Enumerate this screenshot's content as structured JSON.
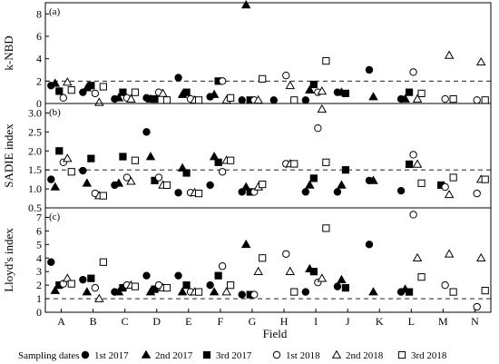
{
  "chart_data": [
    {
      "type": "scatter",
      "panel_tag": "(a)",
      "ylabel": "k-NBD",
      "ylim": [
        0,
        9
      ],
      "yticks": [
        0,
        2,
        4,
        6,
        8
      ],
      "reference_line": 2,
      "categories": [
        "A",
        "B",
        "C",
        "D",
        "E",
        "F",
        "G",
        "H",
        "I",
        "J",
        "K",
        "L",
        "M",
        "N"
      ],
      "series": [
        {
          "values": [
            1.6,
            1.0,
            0.4,
            0.5,
            2.3,
            0.6,
            0.3,
            0.3,
            0.3,
            1.0,
            3.0,
            0.4,
            null,
            null
          ]
        },
        {
          "values": [
            1.8,
            1.4,
            0.5,
            0.4,
            0.8,
            0.8,
            8.8,
            null,
            1.2,
            1.0,
            0.6,
            0.4,
            null,
            null
          ]
        },
        {
          "values": [
            1.1,
            1.6,
            1.0,
            0.4,
            1.0,
            2.0,
            0.3,
            null,
            1.7,
            0.9,
            null,
            1.0,
            null,
            null
          ]
        },
        {
          "values": [
            0.5,
            0.9,
            0.5,
            1.0,
            0.4,
            2.0,
            0.3,
            2.5,
            1.0,
            null,
            null,
            2.8,
            0.4,
            0.3
          ]
        },
        {
          "values": [
            1.9,
            0.1,
            0.4,
            0.9,
            0.3,
            0.3,
            0.3,
            1.6,
            1.1,
            null,
            null,
            0.4,
            4.3,
            3.7
          ]
        },
        {
          "values": [
            1.2,
            1.5,
            1.0,
            0.3,
            0.3,
            0.5,
            2.2,
            0.3,
            3.8,
            null,
            null,
            0.9,
            0.4,
            0.3
          ]
        }
      ]
    },
    {
      "type": "scatter",
      "panel_tag": "(b)",
      "ylabel": "SADIE index",
      "ylim": [
        0.5,
        3.25
      ],
      "yticks": [
        0.5,
        1.0,
        1.5,
        2.0,
        2.5,
        3.0
      ],
      "reference_line": 1.5,
      "categories": [
        "A",
        "B",
        "C",
        "D",
        "E",
        "F",
        "G",
        "H",
        "I",
        "J",
        "K",
        "L",
        "M",
        "N"
      ],
      "series": [
        {
          "values": [
            1.25,
            1.48,
            1.1,
            2.5,
            0.9,
            1.1,
            0.92,
            null,
            0.92,
            0.92,
            1.22,
            0.95,
            null,
            null
          ]
        },
        {
          "values": [
            1.05,
            1.15,
            1.15,
            1.85,
            1.55,
            1.85,
            1.05,
            null,
            1.1,
            1.1,
            1.22,
            null,
            null,
            null
          ]
        },
        {
          "values": [
            2.0,
            1.8,
            1.85,
            1.22,
            1.42,
            1.7,
            0.92,
            null,
            1.28,
            1.5,
            null,
            1.65,
            1.1,
            null
          ]
        },
        {
          "values": [
            1.7,
            0.88,
            1.3,
            1.3,
            0.9,
            1.45,
            0.92,
            1.66,
            2.6,
            null,
            null,
            1.9,
            1.05,
            0.88
          ]
        },
        {
          "values": [
            1.8,
            0.82,
            1.2,
            1.1,
            0.9,
            1.75,
            1.05,
            1.66,
            3.1,
            null,
            null,
            1.65,
            0.85,
            1.25
          ]
        },
        {
          "values": [
            1.45,
            0.82,
            1.75,
            1.1,
            0.88,
            1.75,
            1.12,
            1.66,
            1.7,
            null,
            null,
            1.15,
            1.3,
            1.25
          ]
        }
      ]
    },
    {
      "type": "scatter",
      "panel_tag": "(c)",
      "ylabel": "Lloyd's index",
      "xlabel": "Field",
      "ylim": [
        0,
        7.7
      ],
      "yticks": [
        0,
        1,
        2,
        3,
        4,
        5,
        6,
        7
      ],
      "reference_line": 1,
      "categories": [
        "A",
        "B",
        "C",
        "D",
        "E",
        "F",
        "G",
        "H",
        "I",
        "J",
        "K",
        "L",
        "M",
        "N"
      ],
      "series": [
        {
          "values": [
            3.7,
            2.4,
            1.5,
            2.7,
            2.7,
            2.0,
            1.3,
            null,
            1.5,
            1.9,
            5.0,
            1.5,
            null,
            null
          ]
        },
        {
          "values": [
            1.6,
            1.5,
            1.5,
            1.5,
            1.5,
            1.5,
            5.0,
            null,
            3.2,
            2.4,
            1.5,
            1.7,
            null,
            null
          ]
        },
        {
          "values": [
            2.0,
            2.5,
            1.8,
            1.7,
            2.0,
            2.7,
            1.3,
            null,
            3.0,
            1.8,
            null,
            1.5,
            null,
            null
          ]
        },
        {
          "values": [
            2.1,
            1.8,
            2.0,
            2.0,
            1.5,
            3.4,
            1.3,
            4.3,
            2.2,
            null,
            null,
            7.2,
            2.0,
            0.4
          ]
        },
        {
          "values": [
            2.5,
            1.0,
            2.0,
            1.8,
            1.5,
            1.5,
            3.0,
            3.0,
            2.5,
            null,
            null,
            4.0,
            4.3,
            4.0
          ]
        },
        {
          "values": [
            2.1,
            3.7,
            1.9,
            1.8,
            1.5,
            2.0,
            4.0,
            1.5,
            6.2,
            null,
            null,
            2.6,
            1.5,
            1.6
          ]
        }
      ]
    }
  ],
  "legend": {
    "title": "Sampling dates",
    "entries": [
      {
        "label": "1st 2017",
        "marker": "circle",
        "filled": true
      },
      {
        "label": "2nd 2017",
        "marker": "triangle",
        "filled": true
      },
      {
        "label": "3rd 2017",
        "marker": "square",
        "filled": true
      },
      {
        "label": "1st 2018",
        "marker": "circle",
        "filled": false
      },
      {
        "label": "2nd 2018",
        "marker": "triangle",
        "filled": false
      },
      {
        "label": "3rd 2018",
        "marker": "square",
        "filled": false
      }
    ]
  }
}
